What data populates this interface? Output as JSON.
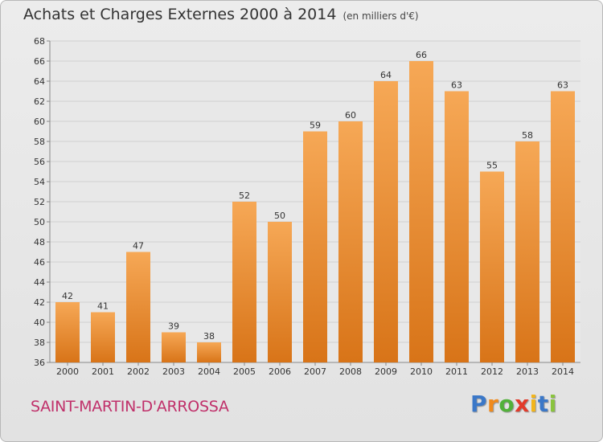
{
  "header": {
    "title": "Achats et Charges Externes 2000 à 2014",
    "subtitle": "(en milliers d'€)"
  },
  "footer": {
    "commune": "SAINT-MARTIN-D'ARROSSA",
    "logo_letters": [
      "P",
      "r",
      "o",
      "x",
      "i",
      "t",
      "i"
    ],
    "logo_colors": [
      "#3b78c8",
      "#f08a1c",
      "#52b13a",
      "#e23a2a",
      "#f2b51c",
      "#3b78c8",
      "#8ac43e"
    ]
  },
  "colors": {
    "bar_top": "#f6a856",
    "bar_bottom": "#d87418",
    "grid": "#cfcfcf",
    "axis": "#888888"
  },
  "chart_data": {
    "type": "bar",
    "title": "Achats et Charges Externes 2000 à 2014",
    "subtitle": "(en milliers d'€)",
    "categories": [
      "2000",
      "2001",
      "2002",
      "2003",
      "2004",
      "2005",
      "2006",
      "2007",
      "2008",
      "2009",
      "2010",
      "2011",
      "2012",
      "2013",
      "2014"
    ],
    "values": [
      42,
      41,
      47,
      39,
      38,
      52,
      50,
      59,
      60,
      64,
      66,
      63,
      55,
      58,
      63
    ],
    "ylim": [
      36,
      68
    ],
    "yticks": [
      36,
      38,
      40,
      42,
      44,
      46,
      48,
      50,
      52,
      54,
      56,
      58,
      60,
      62,
      64,
      66,
      68
    ],
    "grid": true,
    "xlabel": "",
    "ylabel": ""
  }
}
